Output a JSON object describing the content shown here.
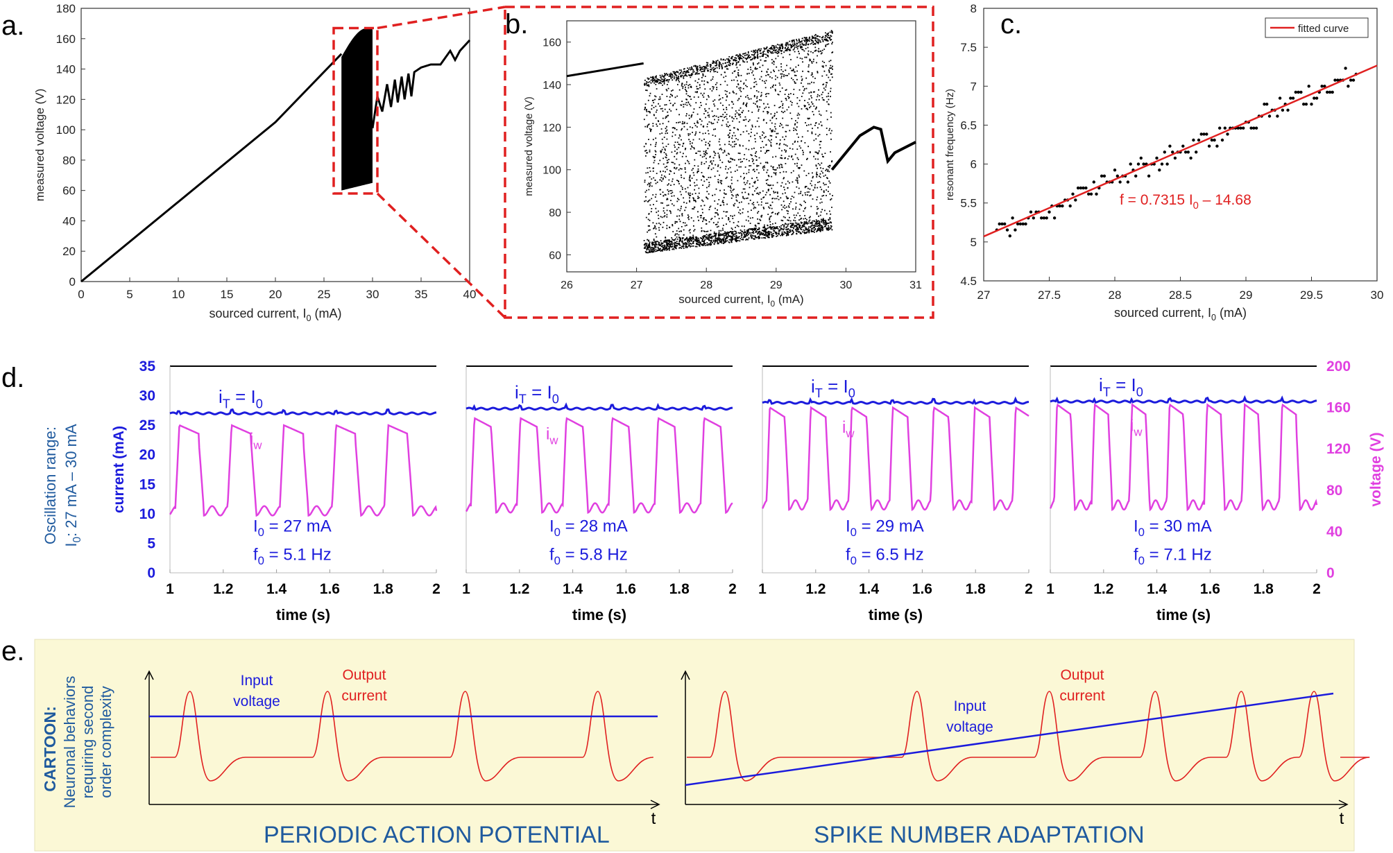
{
  "colors": {
    "blue": "#1b1bdc",
    "magenta": "#e040e0",
    "red": "#e02020",
    "darkblue": "#1f5a9e",
    "panel_bg": "#fbf8d6",
    "black": "#000000"
  },
  "chart_data": [
    {
      "id": "a",
      "type": "scatter",
      "panel_label": "a.",
      "title": "",
      "xlabel": "sourced current, I",
      "xlabel_sub": "0",
      "xlabel_unit": " (mA)",
      "ylabel": "measured voltage (V)",
      "xlim": [
        0,
        40
      ],
      "ylim": [
        0,
        180
      ],
      "xticks": [
        0,
        5,
        10,
        15,
        20,
        25,
        30,
        35,
        40
      ],
      "yticks": [
        0,
        20,
        40,
        60,
        80,
        100,
        120,
        140,
        160,
        180
      ],
      "line": {
        "x": [
          0,
          20,
          26.8
        ],
        "y": [
          0,
          105,
          150
        ]
      },
      "oscillation_region": {
        "x": [
          26.8,
          30
        ],
        "y_low": [
          60,
          65
        ],
        "y_high": [
          148,
          167
        ]
      },
      "upper_branch": {
        "x": [
          30,
          30.5,
          31,
          31.5,
          31.9,
          32.3,
          32.6,
          33.0,
          33.3,
          33.7,
          34.0,
          34.3,
          35.0,
          36.0,
          37.0,
          38.0,
          38.5,
          39.0,
          40.0
        ],
        "y": [
          101,
          122,
          112,
          130,
          115,
          133,
          118,
          135,
          120,
          137,
          122,
          138,
          141,
          143,
          143,
          152,
          146,
          152,
          159
        ]
      },
      "zoom_box": {
        "x": [
          26,
          30.5
        ],
        "y": [
          58,
          167
        ]
      }
    },
    {
      "id": "b",
      "type": "scatter",
      "panel_label": "b.",
      "xlabel": "sourced current, I",
      "xlabel_sub": "0",
      "xlabel_unit": " (mA)",
      "ylabel": "measured voltage (V)",
      "xlim": [
        26,
        31
      ],
      "ylim": [
        52,
        170
      ],
      "xticks": [
        26,
        27,
        28,
        29,
        30,
        31
      ],
      "yticks": [
        60,
        80,
        100,
        120,
        140,
        160
      ],
      "left_branch": {
        "x": [
          26,
          27.1
        ],
        "y": [
          144,
          150
        ]
      },
      "oscillation_region": {
        "x": [
          27.1,
          29.8
        ],
        "y_low": [
          61,
          72
        ],
        "y_high": [
          143,
          166
        ]
      },
      "right_branch": {
        "x": [
          29.8,
          30.2,
          30.4,
          30.5,
          30.6,
          30.7,
          31
        ],
        "y": [
          100,
          116,
          120,
          119,
          104,
          108,
          113
        ]
      }
    },
    {
      "id": "c",
      "type": "scatter",
      "panel_label": "c.",
      "xlabel": "sourced current, I",
      "xlabel_sub": "0",
      "xlabel_unit": " (mA)",
      "ylabel": "resonant frequency (Hz)",
      "xlim": [
        27,
        30
      ],
      "ylim": [
        4.5,
        8
      ],
      "xticks": [
        27,
        27.5,
        28,
        28.5,
        29,
        29.5,
        30
      ],
      "yticks": [
        4.5,
        5,
        5.5,
        6,
        6.5,
        7,
        7.5,
        8
      ],
      "fit": {
        "slope": 0.7315,
        "intercept": -14.68,
        "label": "f = 0.7315 I",
        "label_sub": "0",
        "label_end": " – 14.68"
      },
      "legend": {
        "position": "top-right",
        "entry": "fitted curve"
      },
      "x_start": 27.1,
      "x_end": 29.85
    },
    {
      "id": "d",
      "type": "line",
      "panel_label": "d.",
      "xlabel": "time (s)",
      "ylabel_left": "current (mA)",
      "ylabel_right": "voltage (V)",
      "xlim": [
        1,
        2
      ],
      "ylim_left": [
        0,
        35
      ],
      "ylim_right": [
        0,
        200
      ],
      "xticks": [
        "1",
        "1.2",
        "1.4",
        "1.6",
        "1.8",
        "2"
      ],
      "yticks_left": [
        0,
        5,
        10,
        15,
        20,
        25,
        30,
        35
      ],
      "yticks_right": [
        0,
        40,
        80,
        120,
        160,
        200
      ],
      "side_note_line1": "Oscillation range:",
      "side_note_line2_pre": "I",
      "side_note_line2_sub": "0",
      "side_note_line2_post": ": 27 mA – 30 mA",
      "series": [
        {
          "name": "I0 = 27 mA",
          "I0_label": "= 27 mA",
          "f0_label": "= 5.1 Hz",
          "freq": 5.1,
          "it": 27.0,
          "low": 10.5,
          "high": 25.0
        },
        {
          "name": "I0 = 28 mA",
          "I0_label": "= 28 mA",
          "f0_label": "= 5.8 Hz",
          "freq": 5.8,
          "it": 27.8,
          "low": 11.0,
          "high": 26.2
        },
        {
          "name": "I0 = 29 mA",
          "I0_label": "= 29 mA",
          "f0_label": "= 6.5 Hz",
          "freq": 6.5,
          "it": 28.8,
          "low": 11.5,
          "high": 28.0
        },
        {
          "name": "I0 = 30 mA",
          "I0_label": "= 30 mA",
          "f0_label": "= 7.1 Hz",
          "freq": 7.1,
          "it": 29.0,
          "low": 11.5,
          "high": 28.5
        }
      ],
      "it_label_pre": "i",
      "it_label_sub": "T",
      "it_label_mid": " = I",
      "it_label_sub2": "0",
      "iw_label": "i",
      "iw_sub": "w",
      "I0_pre": "I",
      "I0_sub": "0",
      "f0_pre": "f",
      "f0_sub": "0"
    },
    {
      "id": "e",
      "type": "line",
      "panel_label": "e.",
      "cartoon_label": "CARTOON:",
      "cartoon_lines": [
        "Neuronal behaviors",
        "requiring second",
        "order complexity"
      ],
      "subpanels": [
        {
          "title": "PERIODIC ACTION POTENTIAL",
          "input_label": [
            "Input",
            "voltage"
          ],
          "output_label": [
            "Output",
            "current"
          ],
          "spike_times": [
            0.08,
            0.35,
            0.62,
            0.88
          ],
          "input": "constant"
        },
        {
          "title": "SPIKE NUMBER ADAPTATION",
          "input_label": [
            "Input",
            "voltage"
          ],
          "output_label": [
            "Output",
            "current"
          ],
          "spike_times": [
            0.06,
            0.35,
            0.55,
            0.71,
            0.84,
            0.95
          ],
          "input": "ramp"
        }
      ],
      "t_label": "t"
    }
  ]
}
